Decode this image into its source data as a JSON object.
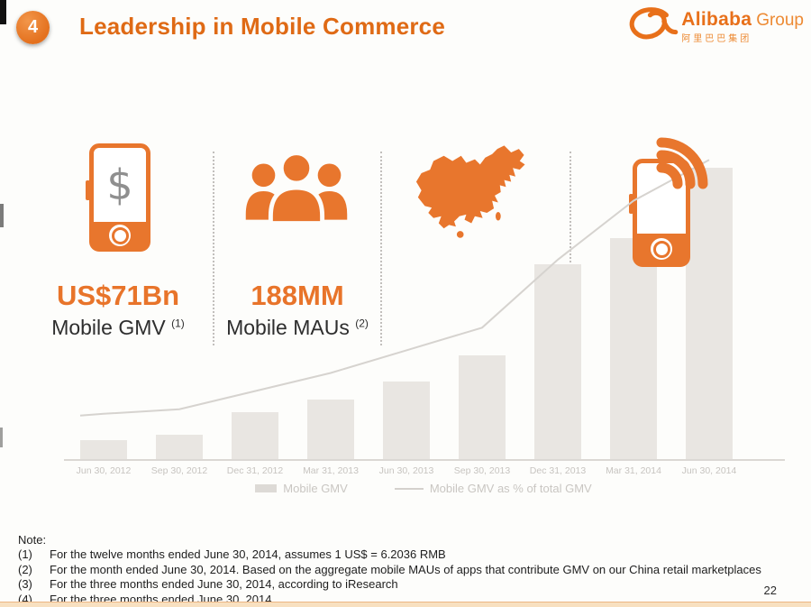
{
  "slide": {
    "badge_number": "4",
    "title": "Leadership in Mobile Commerce",
    "page_number": "22"
  },
  "logo": {
    "brand": "Alibaba",
    "brand_suffix": "Group",
    "chinese": "阿里巴巴集团",
    "mark_icon": "alibaba-smiley-icon"
  },
  "highlights": [
    {
      "icon": "mobile-dollar-icon",
      "icon_glyph": "$",
      "value": "US$71Bn",
      "label": "Mobile GMV",
      "footnote": "(1)"
    },
    {
      "icon": "users-icon",
      "value": "188MM",
      "label": "Mobile MAUs",
      "footnote": "(2)"
    },
    {
      "icon": "china-map-icon"
    },
    {
      "icon": "mobile-signal-icon"
    }
  ],
  "chart_data": {
    "type": "bar",
    "title": "",
    "categories": [
      "Jun 30, 2012",
      "Sep 30, 2012",
      "Dec 31, 2012",
      "Mar 31, 2013",
      "Jun 30, 2013",
      "Sep 30, 2013",
      "Dec 31, 2013",
      "Mar 31, 2014",
      "Jun 30, 2014"
    ],
    "series": [
      {
        "name": "Mobile GMV",
        "type": "bar",
        "unit": "relative bar height, % of tallest bar (no y-axis labels shown)",
        "values": [
          6.5,
          8.5,
          16,
          20.5,
          26.5,
          35.5,
          67,
          76,
          100
        ]
      },
      {
        "name": "Mobile GMV as % of total GMV",
        "type": "line",
        "unit": "% of total GMV, estimated from line position",
        "values": [
          5,
          5.5,
          7.5,
          9.5,
          12,
          14.5,
          22,
          28.5,
          33
        ]
      }
    ],
    "legend": [
      "Mobile GMV",
      "Mobile GMV as % of total GMV"
    ],
    "legend_position": "bottom",
    "grid": false,
    "y_axis_labels": false,
    "bar_color": "#E9E6E2",
    "line_color": "#D6D3CF",
    "label_color": "#C7C4C0"
  },
  "notes": {
    "heading": "Note:",
    "items": [
      {
        "num": "(1)",
        "text": "For the twelve months ended June 30, 2014, assumes 1 US$ = 6.2036 RMB"
      },
      {
        "num": "(2)",
        "text": "For the month ended June 30, 2014. Based on the aggregate mobile MAUs of apps that contribute GMV on our China retail marketplaces"
      },
      {
        "num": "(3)",
        "text": "For the three months ended June 30, 2014, according to iResearch"
      },
      {
        "num": "(4)",
        "text": "For the three months ended June 30, 2014"
      }
    ]
  },
  "colors": {
    "accent": "#E8762D",
    "title": "#DF6A15",
    "bar": "#E9E6E2",
    "line": "#D6D3CF"
  }
}
